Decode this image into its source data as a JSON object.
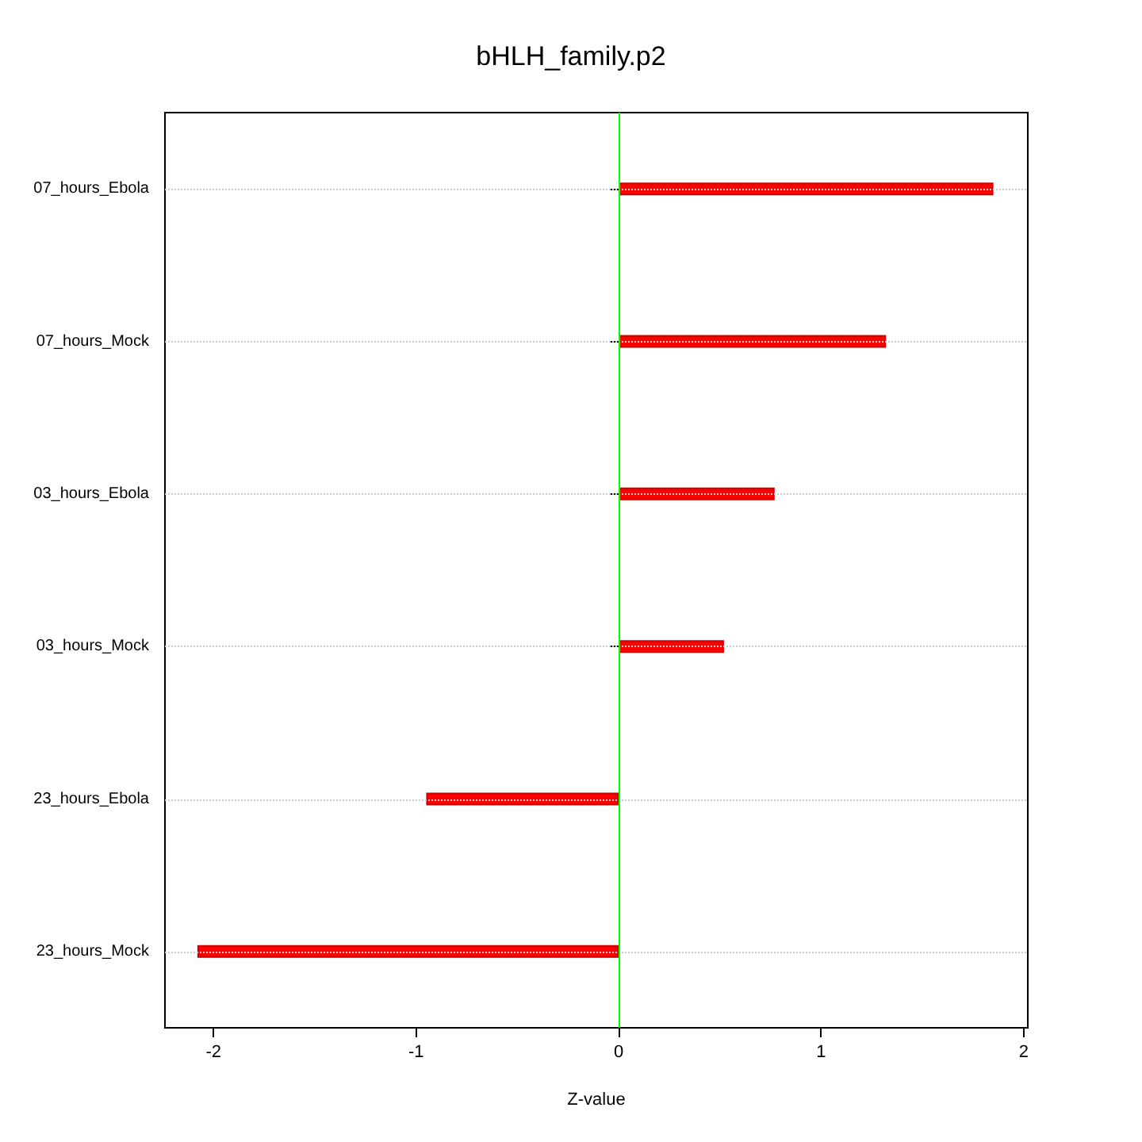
{
  "chart_data": {
    "type": "bar",
    "orientation": "horizontal",
    "title": "bHLH_family.p2",
    "xlabel": "Z-value",
    "categories": [
      "07_hours_Ebola",
      "07_hours_Mock",
      "03_hours_Ebola",
      "03_hours_Mock",
      "23_hours_Ebola",
      "23_hours_Mock"
    ],
    "values": [
      1.85,
      1.32,
      0.77,
      0.52,
      -0.95,
      -2.08
    ],
    "color": "#ff0000",
    "xlim": [
      -2.24,
      2.02
    ],
    "xticks": [
      -2,
      -1,
      0,
      1,
      2
    ],
    "grid": "y",
    "ref_lines": [
      {
        "axis": "x",
        "value": 0,
        "color": "#00ff00",
        "line_style": "solid"
      }
    ]
  }
}
